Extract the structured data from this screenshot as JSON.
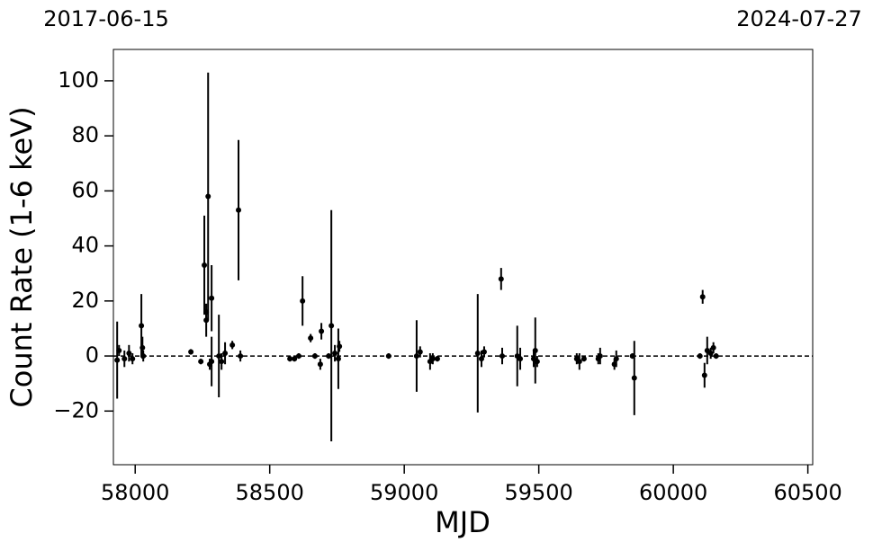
{
  "chart_data": {
    "type": "scatter",
    "x_label": "MJD",
    "y_label": "Count Rate (1-6 keV)",
    "top_labels": [
      "2017-06-15",
      "2024-07-27"
    ],
    "xlim": [
      57919,
      60518
    ],
    "ylim": [
      -39.5,
      111.4
    ],
    "xticks": [
      58000,
      58500,
      59000,
      59500,
      60000,
      60500
    ],
    "yticks": [
      {
        "value": -20,
        "label": "−20"
      },
      0,
      20,
      40,
      60,
      80,
      100
    ],
    "hline": 0,
    "color": "#000000",
    "x": [
      57933,
      57940,
      57960,
      57977,
      57990,
      58023,
      58027,
      58030,
      58207,
      58244,
      58257,
      58264,
      58264,
      58271,
      58277,
      58284,
      58284,
      58311,
      58321,
      58334,
      58361,
      58384,
      58391,
      58575,
      58592,
      58608,
      58622,
      58652,
      58668,
      58688,
      58692,
      58719,
      58729,
      58742,
      58755,
      58759,
      58942,
      59046,
      59059,
      59096,
      59106,
      59123,
      59273,
      59287,
      59297,
      59360,
      59364,
      59420,
      59431,
      59481,
      59487,
      59494,
      59641,
      59651,
      59668,
      59721,
      59728,
      59781,
      59788,
      59848,
      59855,
      60099,
      60109,
      60116,
      60126,
      60139,
      60149,
      60159
    ],
    "values": [
      -1.5,
      2,
      -1,
      1,
      -1,
      11,
      3,
      0,
      1.5,
      -2,
      33,
      16,
      13,
      58,
      -3,
      21,
      -2,
      0,
      -2,
      1,
      4,
      53,
      0,
      -1,
      -1,
      0,
      20,
      6.5,
      0,
      -3,
      9,
      0,
      11,
      1,
      -1,
      3.5,
      0,
      0,
      1.5,
      -2,
      -1,
      -1,
      1,
      -1,
      1.5,
      28,
      0,
      0,
      -1,
      -1,
      2,
      -2,
      -1,
      -2,
      -1,
      -1,
      0,
      -3,
      -1,
      0,
      -8,
      0,
      21.5,
      -7,
      2,
      1,
      3,
      0
    ],
    "errors": [
      14,
      2,
      3,
      3,
      2,
      11.5,
      4,
      2,
      1,
      1,
      18,
      3,
      6,
      45,
      2,
      12,
      9,
      15,
      3,
      4,
      1.5,
      25.5,
      2,
      1,
      1,
      1,
      9,
      1.5,
      1,
      2,
      3,
      1,
      42,
      3,
      11,
      2,
      1,
      13,
      2,
      3,
      2,
      1,
      21.5,
      3,
      2,
      4,
      3,
      11,
      4,
      3,
      12,
      2,
      2,
      3,
      1,
      2,
      3,
      2,
      3,
      1,
      13.5,
      1,
      2.5,
      4.5,
      5,
      2,
      2,
      1
    ]
  }
}
